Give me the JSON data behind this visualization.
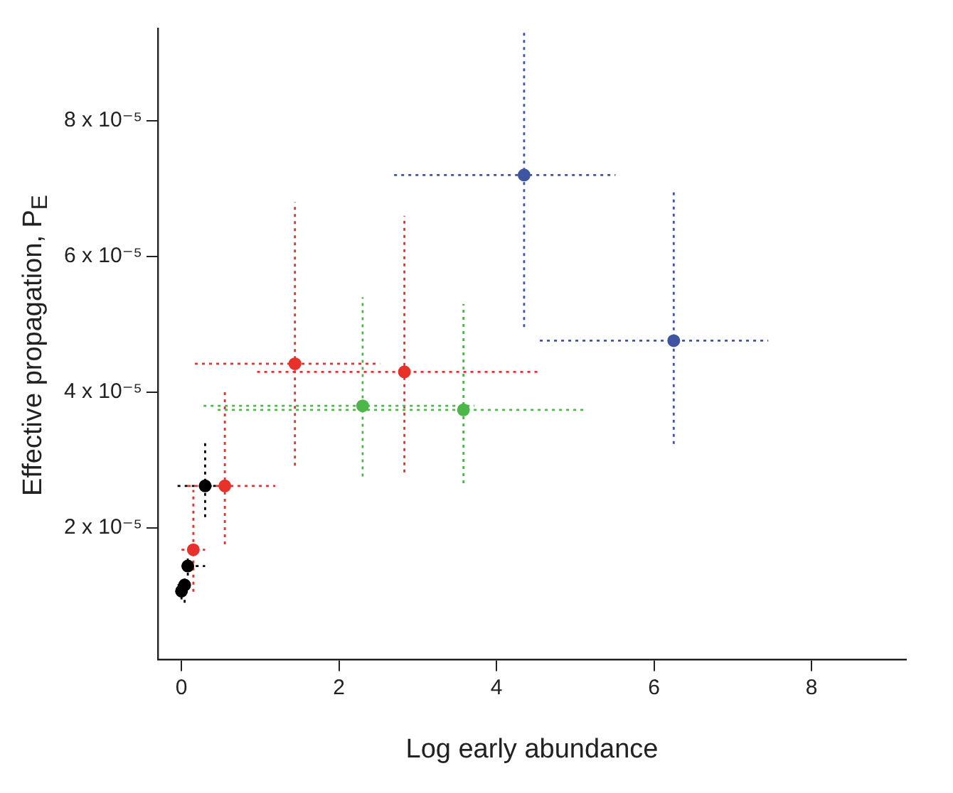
{
  "chart_data": {
    "type": "scatter",
    "xlabel": "Log early abundance",
    "ylabel": "Effective propagation, P$_{E}$",
    "xlim": [
      -0.3,
      9.2
    ],
    "ylim": [
      6e-07,
      9.36e-05
    ],
    "xticks": [
      0,
      2,
      4,
      6,
      8
    ],
    "yticks": [
      {
        "value": 2e-05,
        "label": "2 x 10⁻⁵"
      },
      {
        "value": 4e-05,
        "label": "4 x 10⁻⁵"
      },
      {
        "value": 6e-05,
        "label": "6 x 10⁻⁵"
      },
      {
        "value": 8e-05,
        "label": "8 x 10⁻⁵"
      }
    ],
    "grid": false,
    "legend": false,
    "marker": "circle",
    "series": [
      {
        "color": "#000000",
        "x": [
          0.3,
          0.08,
          0.04,
          0.0
        ],
        "values": [
          2.62e-05,
          1.44e-05,
          1.16e-05,
          1.07e-05
        ],
        "errors": [
          [
            2.16e-05,
            3.3e-05
          ],
          [
            1.3e-05,
            1.6e-05
          ],
          [
            9e-06,
            1.3e-05
          ],
          [
            9.5e-06,
            1.2e-05
          ]
        ],
        "xerrors": [
          [
            -0.05,
            0.45
          ],
          [
            0.0,
            0.3
          ],
          [
            -0.05,
            0.1
          ],
          [
            -0.05,
            0.05
          ]
        ]
      },
      {
        "color": "#e8312a",
        "x": [
          1.44,
          2.83,
          0.55,
          0.15
        ],
        "values": [
          4.42e-05,
          4.3e-05,
          2.62e-05,
          1.68e-05
        ],
        "errors": [
          [
            2.92e-05,
            6.8e-05
          ],
          [
            2.82e-05,
            6.6e-05
          ],
          [
            1.76e-05,
            4.04e-05
          ],
          [
            1.06e-05,
            2.56e-05
          ]
        ],
        "xerrors": [
          [
            0.17,
            2.52
          ],
          [
            0.96,
            4.52
          ],
          [
            0.08,
            1.19
          ],
          [
            0.0,
            0.3
          ]
        ]
      },
      {
        "color": "#4cb748",
        "x": [
          2.3,
          3.58
        ],
        "values": [
          3.8e-05,
          3.74e-05
        ],
        "errors": [
          [
            2.76e-05,
            5.4e-05
          ],
          [
            2.66e-05,
            5.3e-05
          ]
        ],
        "xerrors": [
          [
            0.28,
            3.72
          ],
          [
            0.46,
            5.13
          ]
        ]
      },
      {
        "color": "#3e55a4",
        "x": [
          4.35,
          6.25
        ],
        "values": [
          7.2e-05,
          4.76e-05
        ],
        "errors": [
          [
            4.96e-05,
            9.32e-05
          ],
          [
            3.24e-05,
            7e-05
          ]
        ],
        "xerrors": [
          [
            2.7,
            5.51
          ],
          [
            4.55,
            7.45
          ]
        ]
      }
    ]
  }
}
